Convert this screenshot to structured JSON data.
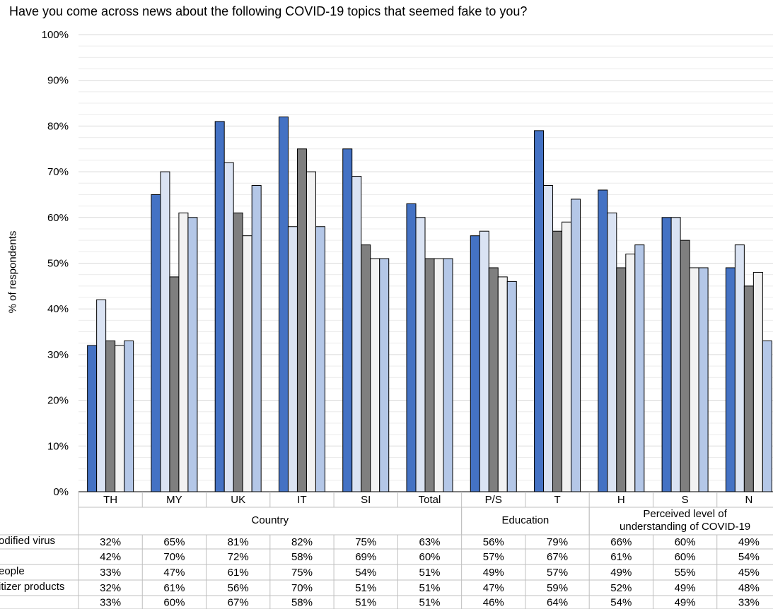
{
  "chart_data": {
    "type": "bar",
    "title": "Have you come across news about the following COVID-19 topics that seemed fake to you?",
    "ylabel": "% of respondents",
    "ylim": [
      0,
      100
    ],
    "yticks": [
      "0%",
      "10%",
      "20%",
      "30%",
      "40%",
      "50%",
      "60%",
      "70%",
      "80%",
      "90%",
      "100%"
    ],
    "grid": true,
    "categories": [
      "TH",
      "MY",
      "UK",
      "IT",
      "SI",
      "Total",
      "P/S",
      "T",
      "H",
      "S",
      "N"
    ],
    "groups": [
      {
        "label": "Country",
        "start": 0,
        "end": 5
      },
      {
        "label": "Education",
        "start": 6,
        "end": 7
      },
      {
        "label": "Perceived level of understanding of COVID-19",
        "start": 8,
        "end": 10
      }
    ],
    "series": [
      {
        "name": "odified virus",
        "color": "#4472c4",
        "values": [
          32,
          65,
          81,
          82,
          75,
          63,
          56,
          79,
          66,
          60,
          49
        ],
        "labels": [
          "32%",
          "65%",
          "81%",
          "82%",
          "75%",
          "63%",
          "56%",
          "79%",
          "66%",
          "60%",
          "49%"
        ]
      },
      {
        "color": "#dae3f3",
        "values": [
          42,
          70,
          72,
          58,
          69,
          60,
          57,
          67,
          61,
          60,
          54
        ],
        "labels": [
          "42%",
          "70%",
          "72%",
          "58%",
          "69%",
          "60%",
          "57%",
          "67%",
          "61%",
          "60%",
          "54%"
        ]
      },
      {
        "name": "eople",
        "color": "#7f7f7f",
        "values": [
          33,
          47,
          61,
          75,
          54,
          51,
          49,
          57,
          49,
          55,
          45
        ],
        "labels": [
          "33%",
          "47%",
          "61%",
          "75%",
          "54%",
          "51%",
          "49%",
          "57%",
          "49%",
          "55%",
          "45%"
        ]
      },
      {
        "name": "itizer products",
        "color": "#f2f2f2",
        "values": [
          32,
          61,
          56,
          70,
          51,
          51,
          47,
          59,
          52,
          49,
          48
        ],
        "labels": [
          "32%",
          "61%",
          "56%",
          "70%",
          "51%",
          "51%",
          "47%",
          "59%",
          "52%",
          "49%",
          "48%"
        ]
      },
      {
        "color": "#b4c7e7",
        "values": [
          33,
          60,
          67,
          58,
          51,
          51,
          46,
          64,
          54,
          49,
          33
        ],
        "labels": [
          "33%",
          "60%",
          "67%",
          "58%",
          "51%",
          "51%",
          "46%",
          "64%",
          "54%",
          "49%",
          "33%"
        ]
      }
    ]
  }
}
